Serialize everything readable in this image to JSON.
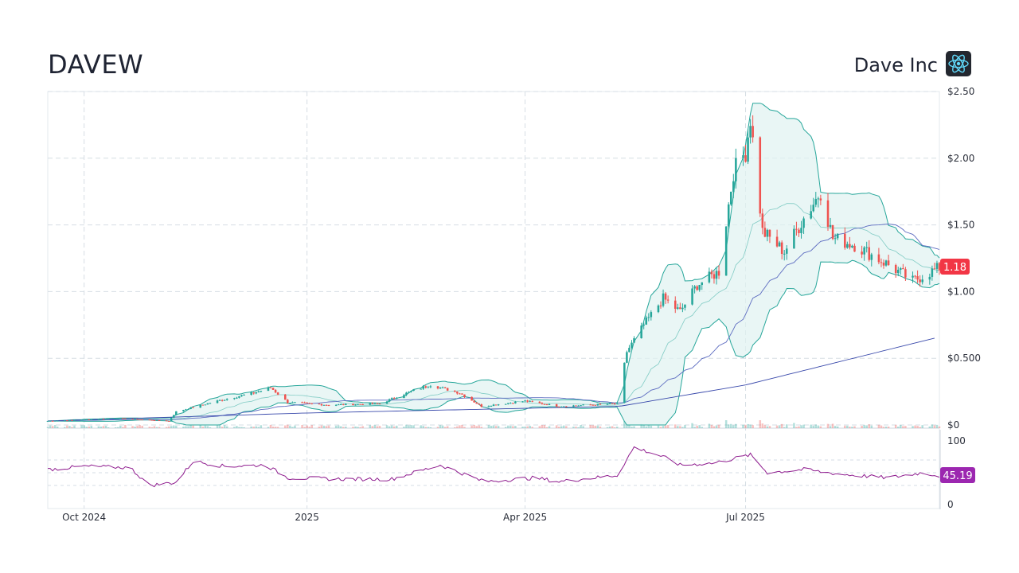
{
  "header": {
    "ticker": "DAVEW",
    "company": "Dave Inc",
    "logo_icon": "react-atom-icon",
    "logo_color": "#61dafb"
  },
  "colors": {
    "up": "#26a69a",
    "down": "#ef5350",
    "band_fill": "#e0f2f1",
    "band_line": "#26a69a",
    "sma_fast": "#5c6bc0",
    "sma_slow": "#3949ab",
    "rsi": "#8e1b8e",
    "last_price_badge": "#f23645",
    "rsi_badge": "#9c27b0",
    "grid": "#d6dde4"
  },
  "chart_data": {
    "type": "candlestick",
    "x_axis": {
      "type": "date",
      "tick_labels": [
        "Oct 2024",
        "2025",
        "Apr 2025",
        "Jul 2025"
      ],
      "tick_dates": [
        "2024-10-01",
        "2025-01-01",
        "2025-04-01",
        "2025-07-01"
      ],
      "range": [
        "2024-09-16",
        "2025-09-19"
      ]
    },
    "price_axis": {
      "ticks": [
        0,
        0.5,
        1.0,
        1.5,
        2.0,
        2.5
      ],
      "tick_labels": [
        "$0",
        "$0.500",
        "$1.00",
        "$1.50",
        "$2.00",
        "$2.50"
      ],
      "range": [
        0,
        2.5
      ]
    },
    "rsi_axis": {
      "ticks": [
        0,
        100
      ],
      "tick_labels": [
        "0",
        "100"
      ],
      "range": [
        0,
        100
      ],
      "guides": [
        30,
        50,
        70
      ]
    },
    "last_price": "1.18",
    "last_rsi": "45.19",
    "grid": true,
    "price_keypoints": [
      {
        "date": "2024-09-16",
        "close": 0.03
      },
      {
        "date": "2024-10-15",
        "close": 0.05
      },
      {
        "date": "2024-11-05",
        "close": 0.03
      },
      {
        "date": "2024-11-08",
        "close": 0.1
      },
      {
        "date": "2024-11-25",
        "close": 0.18
      },
      {
        "date": "2024-12-10",
        "close": 0.24
      },
      {
        "date": "2024-12-17",
        "close": 0.28
      },
      {
        "date": "2024-12-24",
        "close": 0.17
      },
      {
        "date": "2025-01-10",
        "close": 0.15
      },
      {
        "date": "2025-01-31",
        "close": 0.16
      },
      {
        "date": "2025-02-14",
        "close": 0.26
      },
      {
        "date": "2025-02-21",
        "close": 0.3
      },
      {
        "date": "2025-03-05",
        "close": 0.24
      },
      {
        "date": "2025-03-14",
        "close": 0.14
      },
      {
        "date": "2025-04-01",
        "close": 0.18
      },
      {
        "date": "2025-04-15",
        "close": 0.14
      },
      {
        "date": "2025-05-09",
        "close": 0.16
      },
      {
        "date": "2025-05-13",
        "close": 0.55
      },
      {
        "date": "2025-05-20",
        "close": 0.75
      },
      {
        "date": "2025-05-28",
        "close": 0.95
      },
      {
        "date": "2025-06-04",
        "close": 0.85
      },
      {
        "date": "2025-06-11",
        "close": 1.05
      },
      {
        "date": "2025-06-20",
        "close": 1.15
      },
      {
        "date": "2025-06-26",
        "close": 1.9
      },
      {
        "date": "2025-07-01",
        "close": 2.05
      },
      {
        "date": "2025-07-03",
        "close": 2.3
      },
      {
        "date": "2025-07-08",
        "close": 1.45
      },
      {
        "date": "2025-07-17",
        "close": 1.3
      },
      {
        "date": "2025-07-25",
        "close": 1.55
      },
      {
        "date": "2025-08-01",
        "close": 1.75
      },
      {
        "date": "2025-08-06",
        "close": 1.4
      },
      {
        "date": "2025-08-15",
        "close": 1.35
      },
      {
        "date": "2025-08-29",
        "close": 1.2
      },
      {
        "date": "2025-09-08",
        "close": 1.08
      },
      {
        "date": "2025-09-19",
        "close": 1.18
      }
    ],
    "rsi_keypoints": [
      {
        "date": "2024-09-16",
        "rsi": 55
      },
      {
        "date": "2024-10-01",
        "rsi": 60
      },
      {
        "date": "2024-10-20",
        "rsi": 58
      },
      {
        "date": "2024-10-28",
        "rsi": 30
      },
      {
        "date": "2024-11-08",
        "rsi": 35
      },
      {
        "date": "2024-11-15",
        "rsi": 68
      },
      {
        "date": "2024-11-28",
        "rsi": 60
      },
      {
        "date": "2024-12-15",
        "rsi": 62
      },
      {
        "date": "2024-12-24",
        "rsi": 42
      },
      {
        "date": "2025-01-15",
        "rsi": 40
      },
      {
        "date": "2025-02-05",
        "rsi": 40
      },
      {
        "date": "2025-02-25",
        "rsi": 62
      },
      {
        "date": "2025-03-15",
        "rsi": 36
      },
      {
        "date": "2025-04-05",
        "rsi": 42
      },
      {
        "date": "2025-04-15",
        "rsi": 36
      },
      {
        "date": "2025-05-09",
        "rsi": 46
      },
      {
        "date": "2025-05-16",
        "rsi": 90
      },
      {
        "date": "2025-05-28",
        "rsi": 75
      },
      {
        "date": "2025-06-04",
        "rsi": 62
      },
      {
        "date": "2025-06-18",
        "rsi": 65
      },
      {
        "date": "2025-07-03",
        "rsi": 78
      },
      {
        "date": "2025-07-10",
        "rsi": 50
      },
      {
        "date": "2025-07-25",
        "rsi": 55
      },
      {
        "date": "2025-08-08",
        "rsi": 48
      },
      {
        "date": "2025-08-29",
        "rsi": 42
      },
      {
        "date": "2025-09-12",
        "rsi": 50
      },
      {
        "date": "2025-09-19",
        "rsi": 45.19
      }
    ],
    "sma_slow_keypoints": [
      {
        "date": "2024-09-16",
        "value": 0.03
      },
      {
        "date": "2025-01-01",
        "value": 0.09
      },
      {
        "date": "2025-05-10",
        "value": 0.14
      },
      {
        "date": "2025-07-01",
        "value": 0.3
      },
      {
        "date": "2025-09-19",
        "value": 0.66
      }
    ]
  }
}
